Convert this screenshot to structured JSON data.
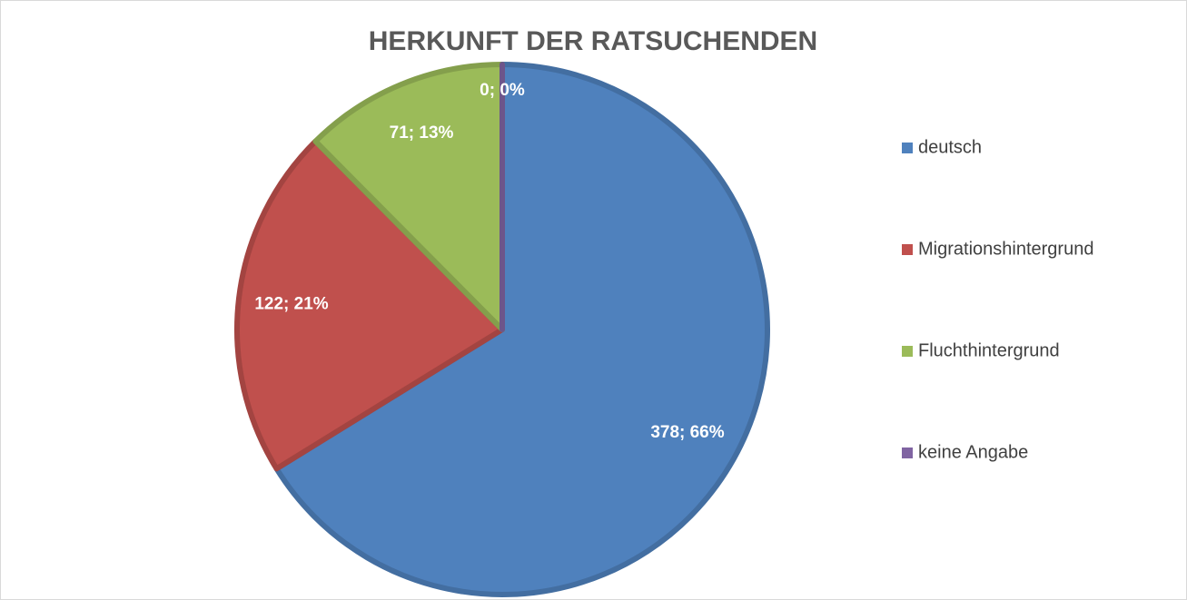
{
  "chart_data": {
    "type": "pie",
    "title": "HERKUNFT DER RATSUCHENDEN",
    "categories": [
      "deutsch",
      "Migrationshintergrund",
      "Fluchthintergrund",
      "keine Angabe"
    ],
    "values": [
      378,
      122,
      71,
      0
    ],
    "value_labels": [
      "378; 66%",
      "122; 21%",
      "71; 13%",
      "0; 0%"
    ],
    "colors": [
      "#4f81bd",
      "#c0504d",
      "#9bbb59",
      "#8064a2"
    ],
    "legend": "right"
  }
}
